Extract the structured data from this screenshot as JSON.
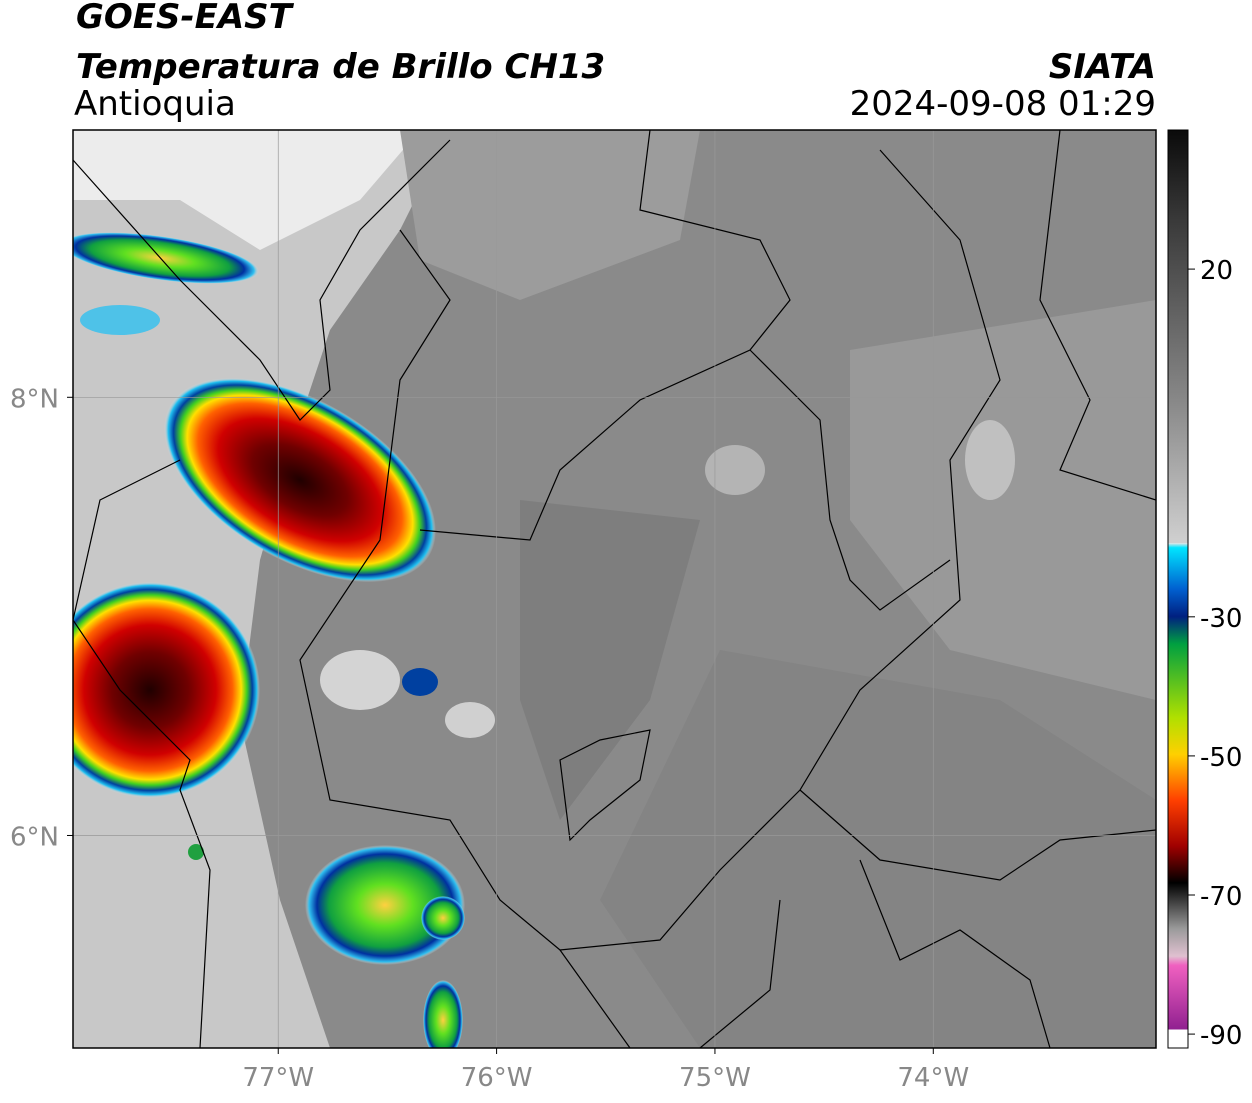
{
  "header": {
    "title": "GOES-EAST",
    "subtitle": "Temperatura de Brillo CH13",
    "region": "Antioquia",
    "agency": "SIATA",
    "datetime": "2024-09-08 01:29"
  },
  "map": {
    "xlim": [
      -77.94,
      -72.98
    ],
    "ylim": [
      5.03,
      9.22
    ],
    "xticks": [
      {
        "value": -77,
        "label": "77°W"
      },
      {
        "value": -76,
        "label": "76°W"
      },
      {
        "value": -75,
        "label": "75°W"
      },
      {
        "value": -74,
        "label": "74°W"
      }
    ],
    "yticks": [
      {
        "value": 8,
        "label": "8°N"
      },
      {
        "value": 6,
        "label": "6°N"
      }
    ]
  },
  "colorbar": {
    "lim": [
      -92,
      40
    ],
    "ticks": [
      20,
      -30,
      -50,
      -70,
      -90
    ]
  }
}
